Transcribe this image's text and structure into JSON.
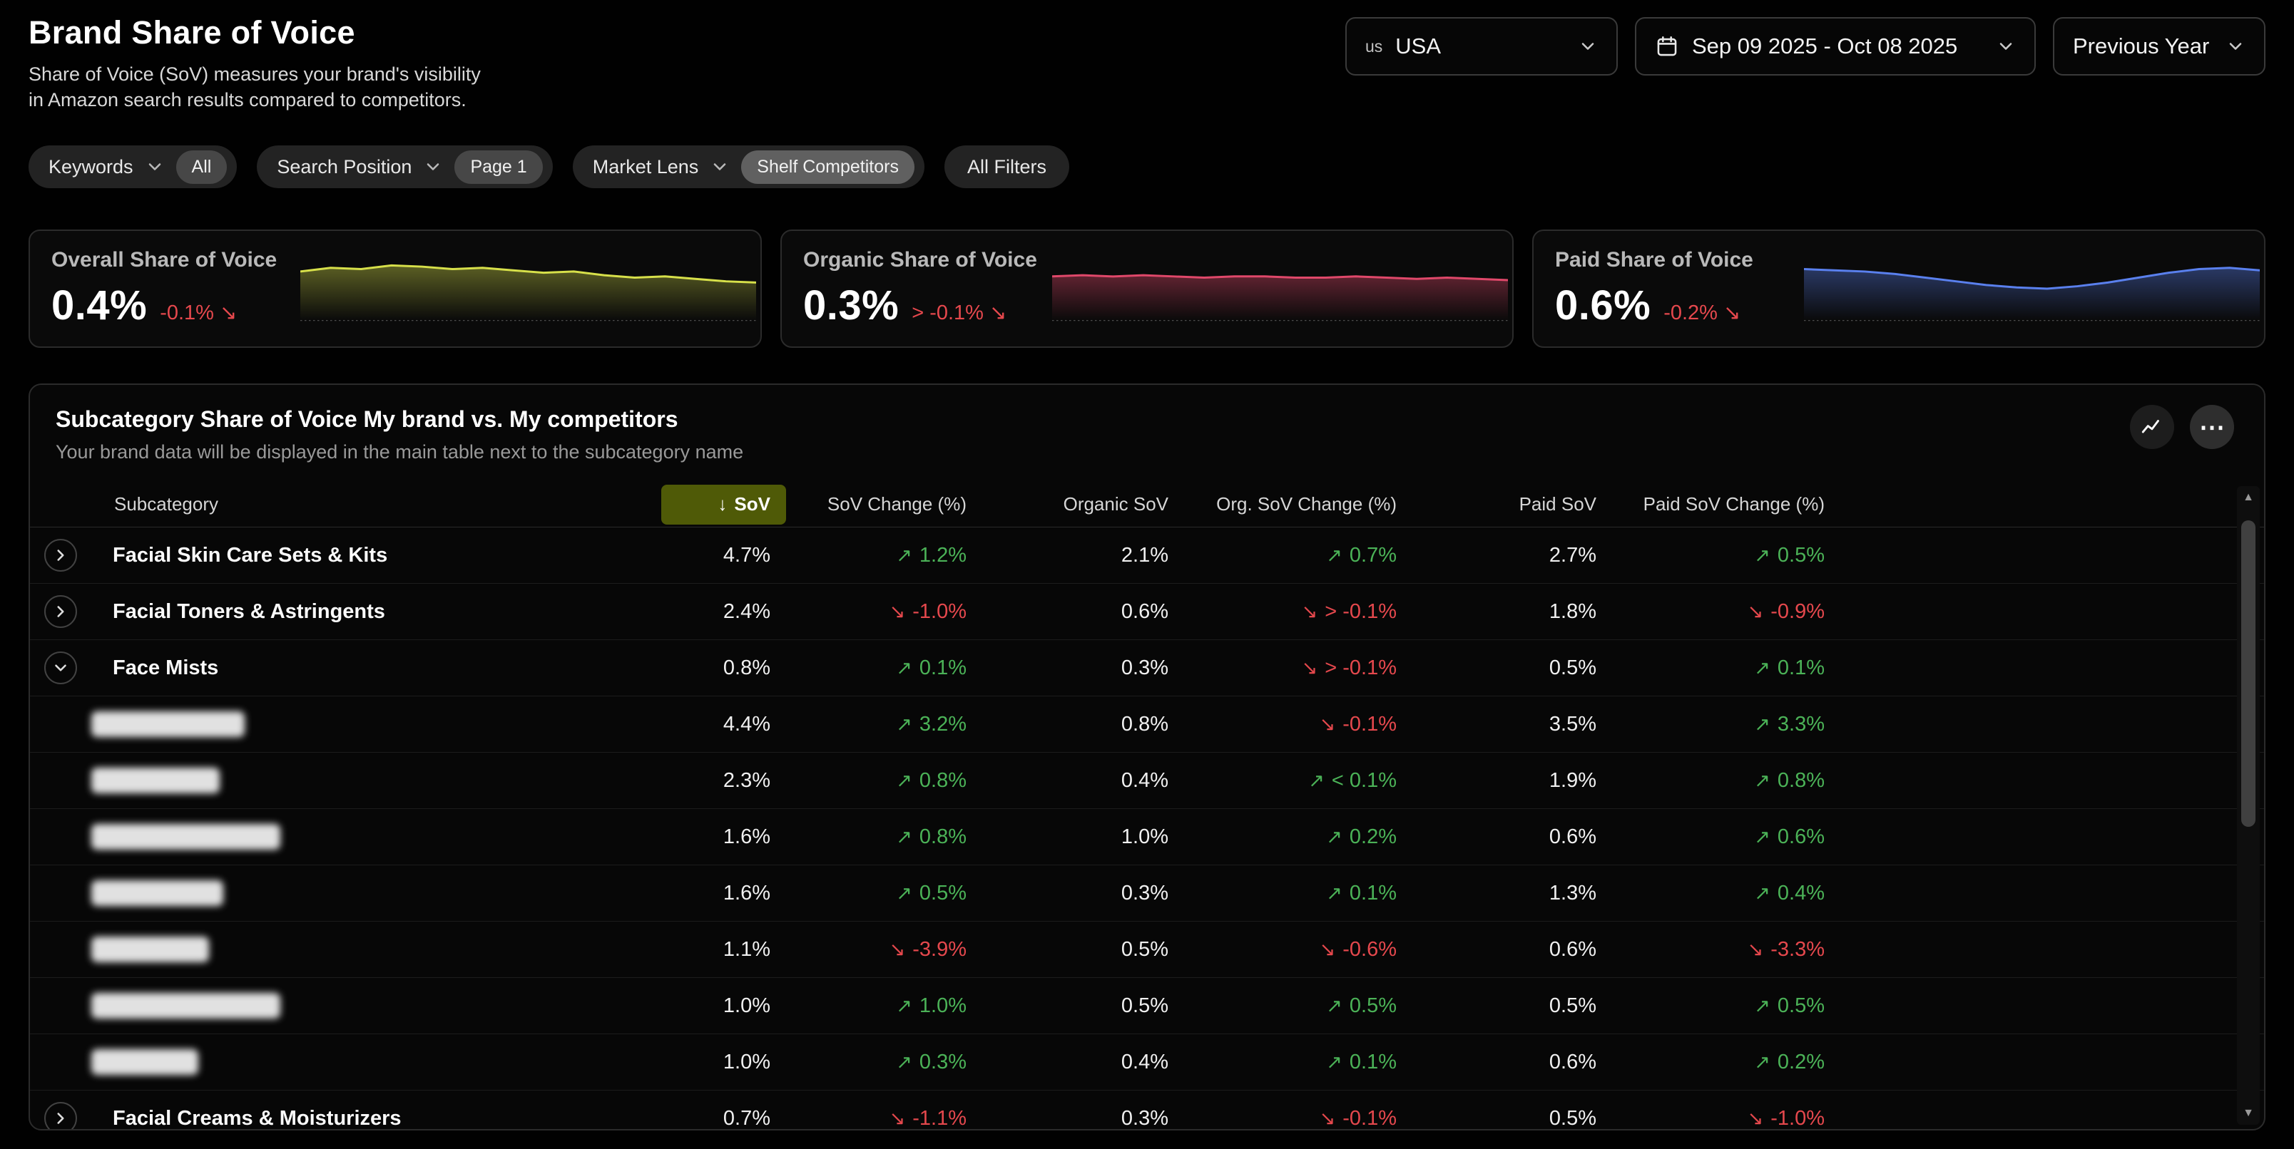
{
  "theme": {
    "positive": "#4bb257",
    "negative": "#e5484d",
    "sov_header_bg": "#4f5a07"
  },
  "header": {
    "title": "Brand Share of Voice",
    "subtitle_line1": "Share of Voice (SoV) measures your brand's visibility",
    "subtitle_line2": "in Amazon search results compared to competitors."
  },
  "controls": {
    "country_code": "us",
    "country_name": "USA",
    "date_range": "Sep 09 2025 - Oct 08 2025",
    "comparison": "Previous Year"
  },
  "filters": [
    {
      "label": "Keywords",
      "value": "All"
    },
    {
      "label": "Search Position",
      "value": "Page 1"
    },
    {
      "label": "Market Lens",
      "value": "Shelf Competitors"
    }
  ],
  "all_filters": "All Filters",
  "kpis": [
    {
      "label": "Overall Share of Voice",
      "value": "0.4%",
      "delta": "-0.1%",
      "arrow": "↘",
      "color": "#d7e04a",
      "spark": [
        18,
        15,
        16,
        13,
        14,
        16,
        15,
        17,
        19,
        18,
        21,
        23,
        22,
        24,
        26,
        27
      ]
    },
    {
      "label": "Organic Share of Voice",
      "value": "0.3%",
      "delta": "> -0.1%",
      "arrow": "↘",
      "color": "#e0486a",
      "spark": [
        22,
        21,
        22,
        21,
        22,
        23,
        22,
        22,
        23,
        23,
        22,
        23,
        24,
        23,
        24,
        25
      ]
    },
    {
      "label": "Paid Share of Voice",
      "value": "0.6%",
      "delta": "-0.2%",
      "arrow": "↘",
      "color": "#5a80ee",
      "spark": [
        16,
        17,
        18,
        20,
        23,
        26,
        29,
        31,
        32,
        30,
        27,
        23,
        19,
        16,
        15,
        17
      ]
    }
  ],
  "table": {
    "title": "Subcategory Share of Voice My brand vs. My competitors",
    "subtitle": "Your brand data will be displayed in the main table next to the subcategory name",
    "sort_icon": "↓",
    "columns": {
      "subcategory": "Subcategory",
      "sov": "SoV",
      "sov_change": "SoV Change (%)",
      "organic": "Organic SoV",
      "organic_change": "Org. SoV Change (%)",
      "paid": "Paid SoV",
      "paid_change": "Paid SoV Change (%)"
    },
    "rows": [
      {
        "type": "parent",
        "name": "Facial Skin Care Sets & Kits",
        "expanded": false,
        "sov": "4.7%",
        "sov_change": "1.2%",
        "sov_dir": "up",
        "organic": "2.1%",
        "organic_change": "0.7%",
        "organic_dir": "up",
        "paid": "2.7%",
        "paid_change": "0.5%",
        "paid_dir": "up"
      },
      {
        "type": "parent",
        "name": "Facial Toners & Astringents",
        "expanded": false,
        "sov": "2.4%",
        "sov_change": "-1.0%",
        "sov_dir": "down",
        "organic": "0.6%",
        "organic_change": "> -0.1%",
        "organic_dir": "down",
        "paid": "1.8%",
        "paid_change": "-0.9%",
        "paid_dir": "down"
      },
      {
        "type": "parent",
        "name": "Face Mists",
        "expanded": true,
        "sov": "0.8%",
        "sov_change": "0.1%",
        "sov_dir": "up",
        "organic": "0.3%",
        "organic_change": "> -0.1%",
        "organic_dir": "down",
        "paid": "0.5%",
        "paid_change": "0.1%",
        "paid_dir": "up"
      },
      {
        "type": "child",
        "pill_width": 215,
        "sov": "4.4%",
        "sov_change": "3.2%",
        "sov_dir": "up",
        "organic": "0.8%",
        "organic_change": "-0.1%",
        "organic_dir": "down",
        "paid": "3.5%",
        "paid_change": "3.3%",
        "paid_dir": "up"
      },
      {
        "type": "child",
        "pill_width": 180,
        "sov": "2.3%",
        "sov_change": "0.8%",
        "sov_dir": "up",
        "organic": "0.4%",
        "organic_change": "< 0.1%",
        "organic_dir": "up",
        "paid": "1.9%",
        "paid_change": "0.8%",
        "paid_dir": "up"
      },
      {
        "type": "child",
        "pill_width": 265,
        "sov": "1.6%",
        "sov_change": "0.8%",
        "sov_dir": "up",
        "organic": "1.0%",
        "organic_change": "0.2%",
        "organic_dir": "up",
        "paid": "0.6%",
        "paid_change": "0.6%",
        "paid_dir": "up"
      },
      {
        "type": "child",
        "pill_width": 185,
        "sov": "1.6%",
        "sov_change": "0.5%",
        "sov_dir": "up",
        "organic": "0.3%",
        "organic_change": "0.1%",
        "organic_dir": "up",
        "paid": "1.3%",
        "paid_change": "0.4%",
        "paid_dir": "up"
      },
      {
        "type": "child",
        "pill_width": 165,
        "sov": "1.1%",
        "sov_change": "-3.9%",
        "sov_dir": "down",
        "organic": "0.5%",
        "organic_change": "-0.6%",
        "organic_dir": "down",
        "paid": "0.6%",
        "paid_change": "-3.3%",
        "paid_dir": "down"
      },
      {
        "type": "child",
        "pill_width": 265,
        "sov": "1.0%",
        "sov_change": "1.0%",
        "sov_dir": "up",
        "organic": "0.5%",
        "organic_change": "0.5%",
        "organic_dir": "up",
        "paid": "0.5%",
        "paid_change": "0.5%",
        "paid_dir": "up"
      },
      {
        "type": "child",
        "pill_width": 150,
        "sov": "1.0%",
        "sov_change": "0.3%",
        "sov_dir": "up",
        "organic": "0.4%",
        "organic_change": "0.1%",
        "organic_dir": "up",
        "paid": "0.6%",
        "paid_change": "0.2%",
        "paid_dir": "up"
      },
      {
        "type": "parent",
        "name": "Facial Creams & Moisturizers",
        "expanded": false,
        "sov": "0.7%",
        "sov_change": "-1.1%",
        "sov_dir": "down",
        "organic": "0.3%",
        "organic_change": "-0.1%",
        "organic_dir": "down",
        "paid": "0.5%",
        "paid_change": "-1.0%",
        "paid_dir": "down"
      }
    ]
  }
}
